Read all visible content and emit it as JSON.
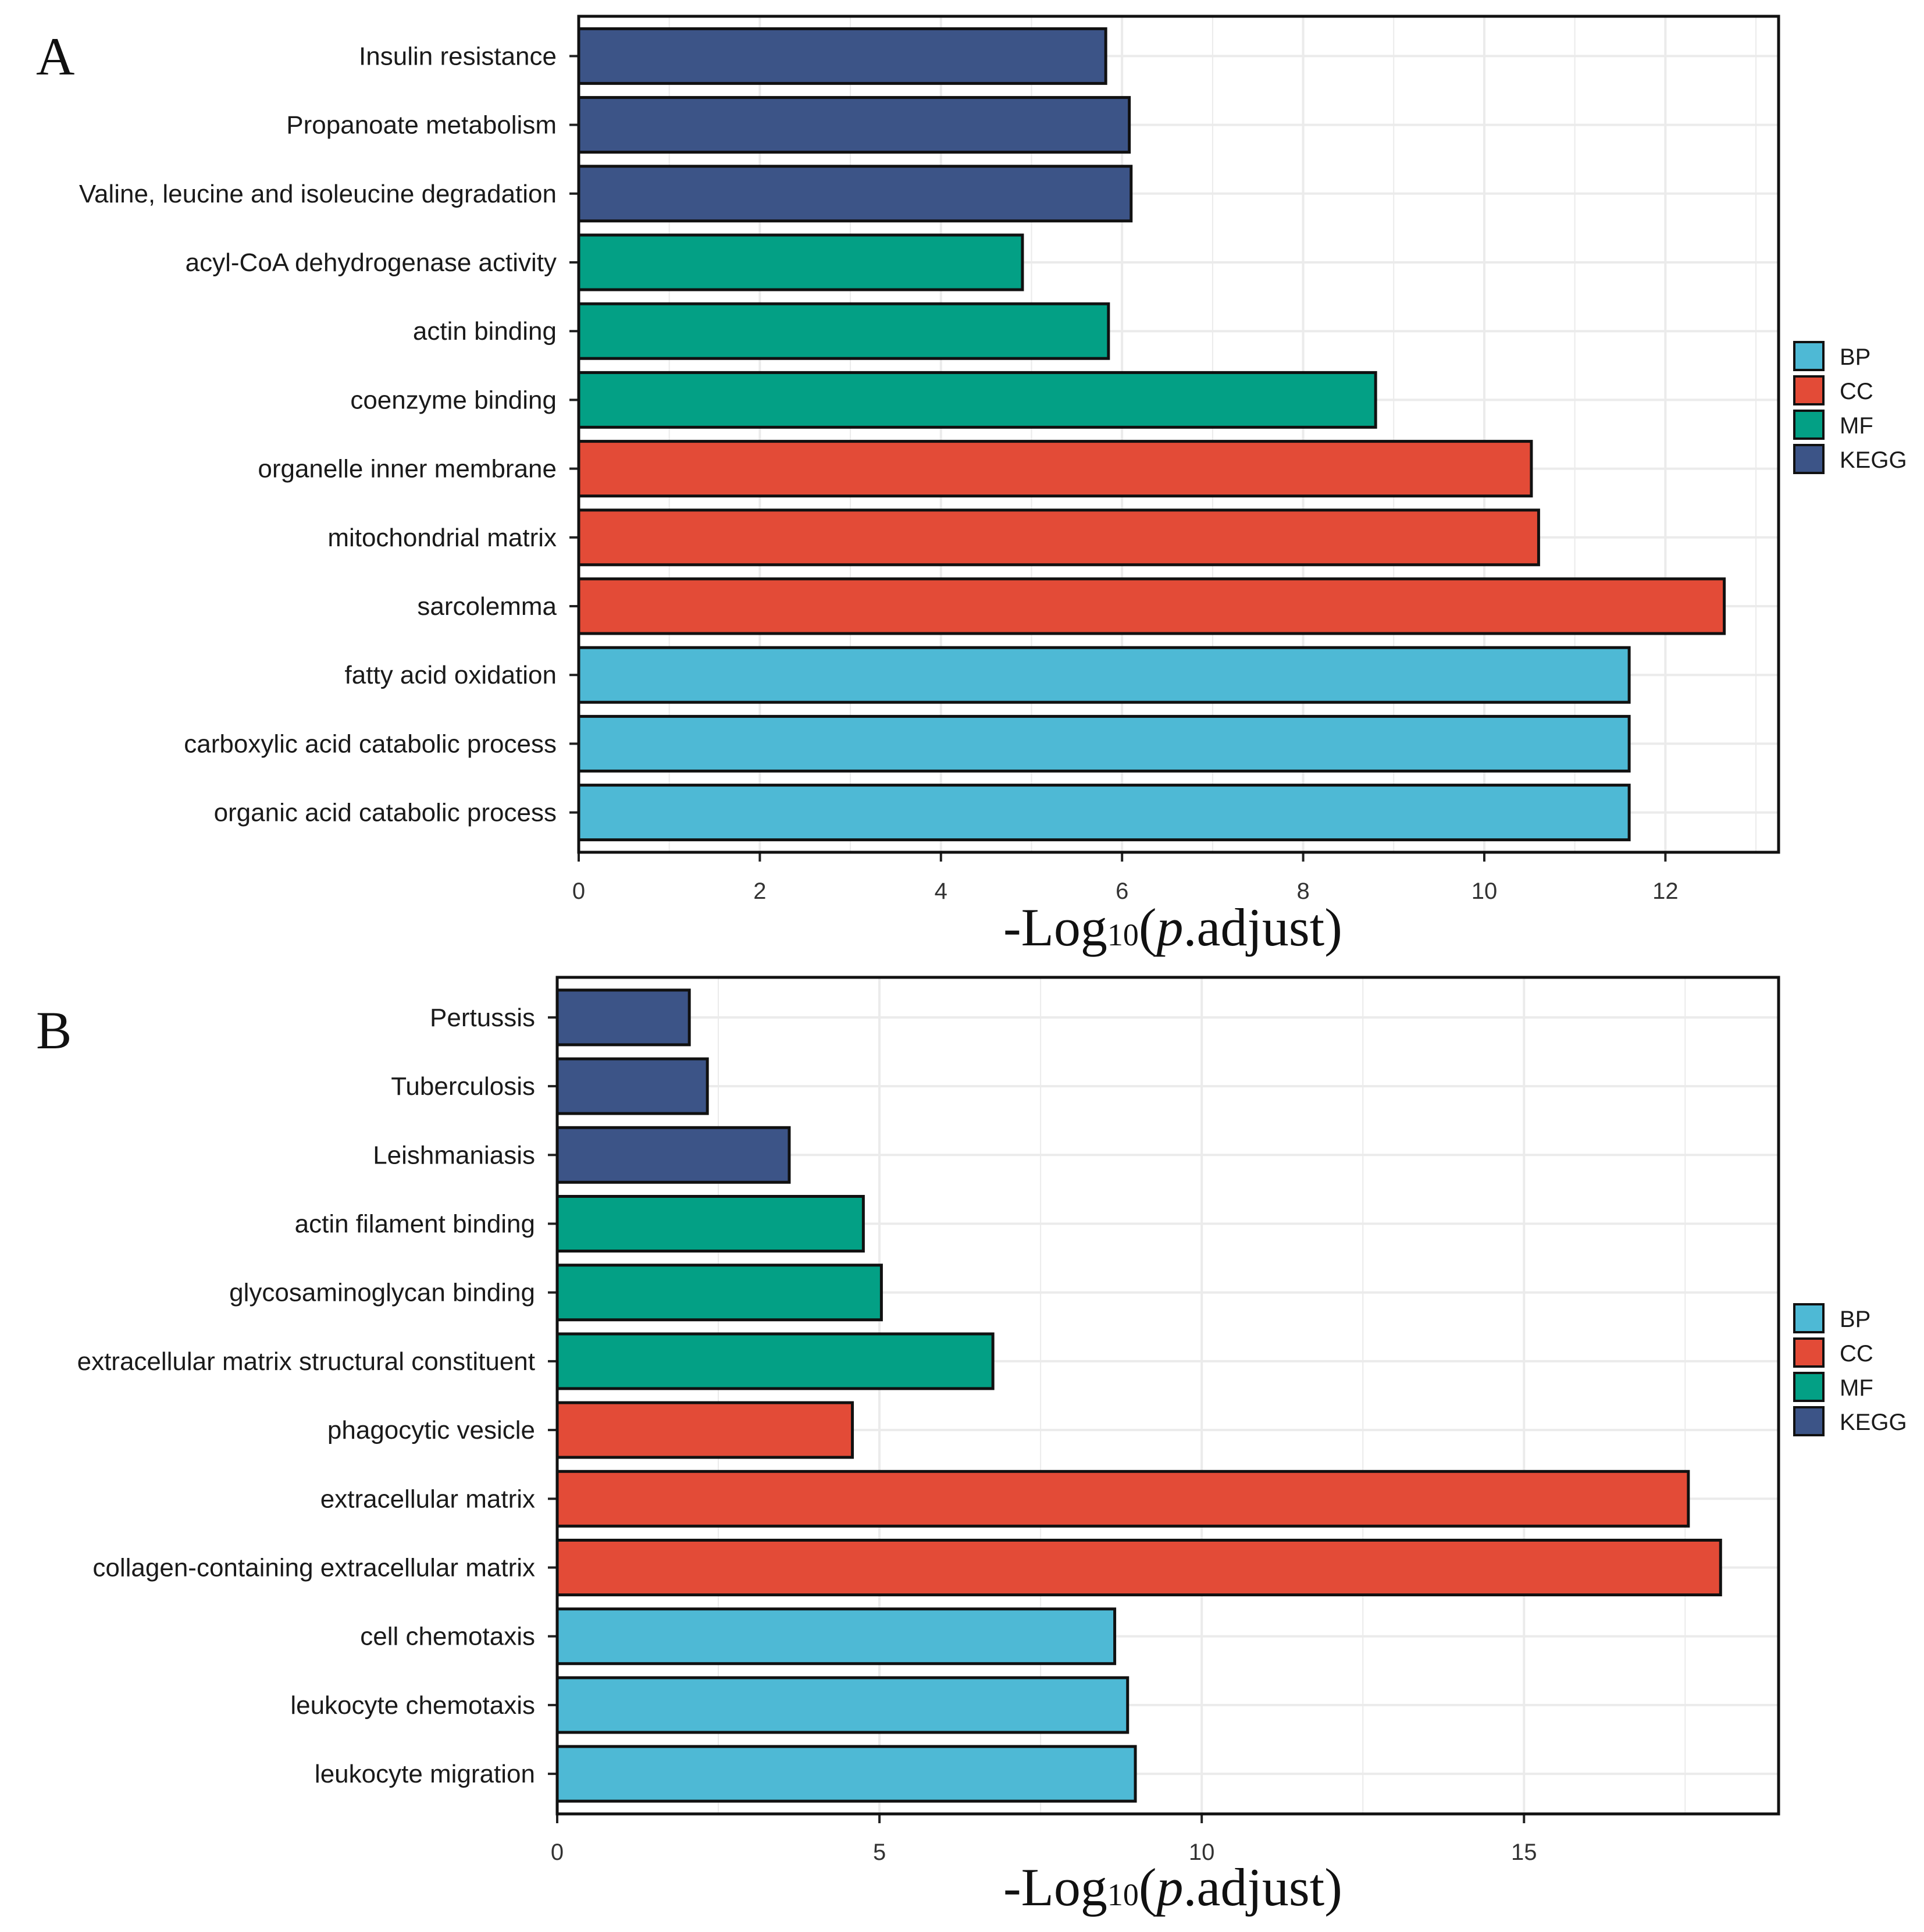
{
  "legend": [
    {
      "name": "BP",
      "color": "#4EB9D5"
    },
    {
      "name": "CC",
      "color": "#E34B37"
    },
    {
      "name": "MF",
      "color": "#03A085"
    },
    {
      "name": "KEGG",
      "color": "#3C5487"
    }
  ],
  "axis_title": {
    "prefix": "-Log",
    "sub": "10",
    "open": "(",
    "p": "p",
    "rest": ".adjust)"
  },
  "chart_data": [
    {
      "panel": "A",
      "type": "bar",
      "orientation": "horizontal",
      "xlabel": "-Log10(p.adjust)",
      "xlim": [
        0,
        13.25
      ],
      "xticks": [
        0,
        2,
        4,
        6,
        8,
        10,
        12
      ],
      "categories": [
        "Insulin resistance",
        "Propanoate metabolism",
        "Valine, leucine and isoleucine degradation",
        "acyl-CoA dehydrogenase activity",
        "actin binding",
        "coenzyme binding",
        "organelle inner membrane",
        "mitochondrial matrix",
        "sarcolemma",
        "fatty acid oxidation",
        "carboxylic acid catabolic process",
        "organic acid catabolic process"
      ],
      "groups": [
        "KEGG",
        "KEGG",
        "KEGG",
        "MF",
        "MF",
        "MF",
        "CC",
        "CC",
        "CC",
        "BP",
        "BP",
        "BP"
      ],
      "values": [
        5.82,
        6.08,
        6.1,
        4.9,
        5.85,
        8.8,
        10.52,
        10.6,
        12.65,
        11.6,
        11.6,
        11.6
      ]
    },
    {
      "panel": "B",
      "type": "bar",
      "orientation": "horizontal",
      "xlabel": "-Log10(p.adjust)",
      "xlim": [
        0,
        18.95
      ],
      "xticks": [
        0,
        5,
        10,
        15
      ],
      "categories": [
        "Pertussis",
        "Tuberculosis",
        "Leishmaniasis",
        "actin filament binding",
        "glycosaminoglycan binding",
        "extracellular matrix structural constituent",
        "phagocytic vesicle",
        "extracellular matrix",
        "collagen-containing extracellular matrix",
        "cell chemotaxis",
        "leukocyte chemotaxis",
        "leukocyte migration"
      ],
      "groups": [
        "KEGG",
        "KEGG",
        "KEGG",
        "MF",
        "MF",
        "MF",
        "CC",
        "CC",
        "CC",
        "BP",
        "BP",
        "BP"
      ],
      "values": [
        2.05,
        2.33,
        3.6,
        4.75,
        5.03,
        6.76,
        4.58,
        17.55,
        18.05,
        8.65,
        8.85,
        8.97
      ]
    }
  ]
}
